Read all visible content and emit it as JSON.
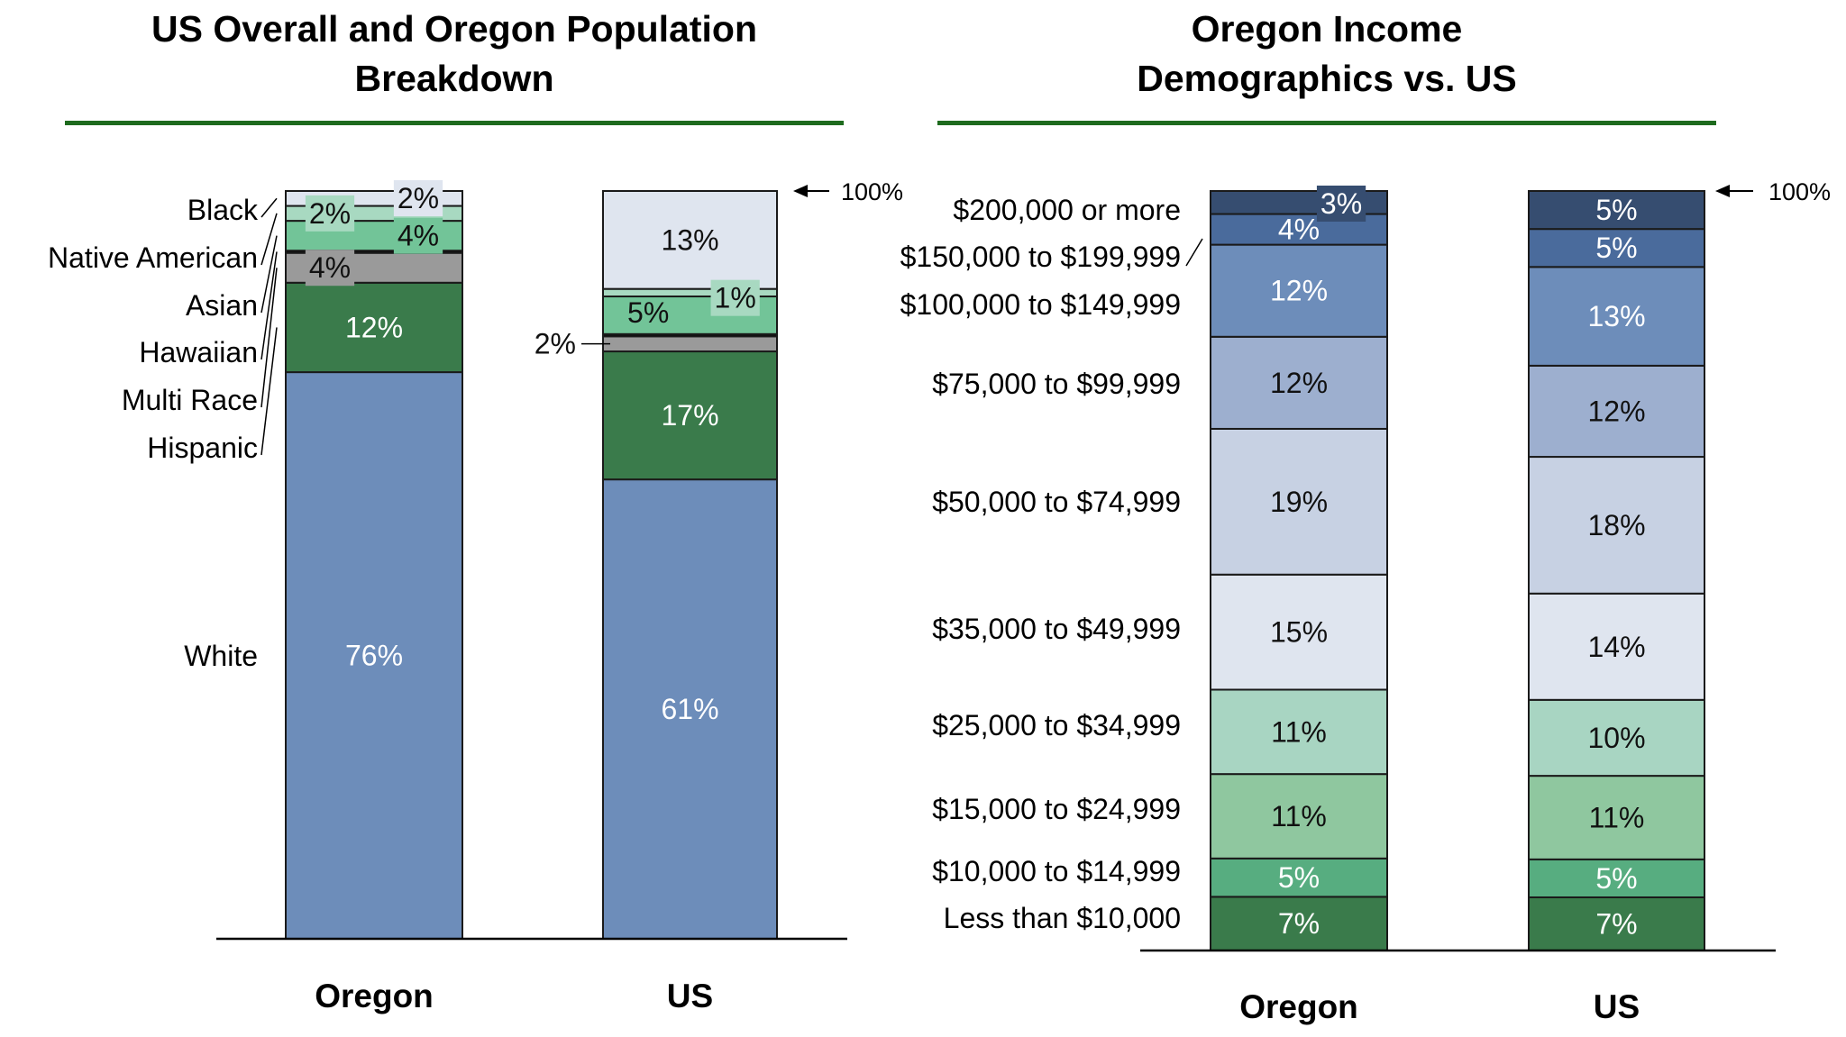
{
  "chart_data": [
    {
      "type": "bar",
      "stacked": true,
      "title": "US Overall and Oregon Population Breakdown",
      "categories": [
        "Oregon",
        "US"
      ],
      "series_order": "bottom-to-top",
      "series": [
        {
          "name": "White",
          "values": [
            76,
            61
          ],
          "labels": [
            "76%",
            "61%"
          ],
          "color": "#6d8dba"
        },
        {
          "name": "Hispanic",
          "values": [
            12,
            17
          ],
          "labels": [
            "12%",
            "17%"
          ],
          "color": "#3a7b4b"
        },
        {
          "name": "Multi Race",
          "values": [
            4,
            2
          ],
          "labels": [
            "4%",
            "2%"
          ],
          "color": "#9a9a9a"
        },
        {
          "name": "Hawaiian",
          "values": [
            0.3,
            0.3
          ],
          "labels": [
            "",
            ""
          ],
          "color": "#000000"
        },
        {
          "name": "Asian",
          "values": [
            4,
            5
          ],
          "labels": [
            "4%",
            "5%"
          ],
          "color": "#72c498"
        },
        {
          "name": "Native American",
          "values": [
            2,
            1
          ],
          "labels": [
            "2%",
            "1%"
          ],
          "color": "#a8d9c1"
        },
        {
          "name": "Black",
          "values": [
            2,
            13
          ],
          "labels": [
            "2%",
            "13%"
          ],
          "color": "#dfe5ef"
        }
      ],
      "annotation": "100%",
      "ylim": [
        0,
        100
      ]
    },
    {
      "type": "bar",
      "stacked": true,
      "title": "Oregon Income Demographics vs. US",
      "categories": [
        "Oregon",
        "US"
      ],
      "series_order": "bottom-to-top",
      "series": [
        {
          "name": "Less than $10,000",
          "values": [
            7,
            7
          ],
          "labels": [
            "7%",
            "7%"
          ],
          "color": "#3a7b4b"
        },
        {
          "name": "$10,000 to $14,999",
          "values": [
            5,
            5
          ],
          "labels": [
            "5%",
            "5%"
          ],
          "color": "#57ad80"
        },
        {
          "name": "$15,000 to $24,999",
          "values": [
            11,
            11
          ],
          "labels": [
            "11%",
            "11%"
          ],
          "color": "#8fc79f"
        },
        {
          "name": "$25,000 to $34,999",
          "values": [
            11,
            10
          ],
          "labels": [
            "11%",
            "10%"
          ],
          "color": "#a8d5c2"
        },
        {
          "name": "$35,000 to $49,999",
          "values": [
            15,
            14
          ],
          "labels": [
            "15%",
            "14%"
          ],
          "color": "#dfe5ef"
        },
        {
          "name": "$50,000 to $74,999",
          "values": [
            19,
            18
          ],
          "labels": [
            "19%",
            "18%"
          ],
          "color": "#c7d1e3"
        },
        {
          "name": "$75,000 to $99,999",
          "values": [
            12,
            12
          ],
          "labels": [
            "12%",
            "12%"
          ],
          "color": "#9dafcf"
        },
        {
          "name": "$100,000 to $149,999",
          "values": [
            12,
            13
          ],
          "labels": [
            "12%",
            "13%"
          ],
          "color": "#6d8dba"
        },
        {
          "name": "$150,000 to $199,999",
          "values": [
            4,
            5
          ],
          "labels": [
            "4%",
            "5%"
          ],
          "color": "#4a6b9c"
        },
        {
          "name": "$200,000 or more",
          "values": [
            3,
            5
          ],
          "labels": [
            "3%",
            "5%"
          ],
          "color": "#364d70"
        }
      ],
      "annotation": "100%",
      "ylim": [
        0,
        100
      ]
    }
  ],
  "titles": {
    "left_line1": "US Overall and Oregon Population",
    "left_line2": "Breakdown",
    "right_line1": "Oregon Income",
    "right_line2": "Demographics vs. US"
  },
  "colors": {
    "rule": "#1e6b1e",
    "axis": "#000000"
  }
}
